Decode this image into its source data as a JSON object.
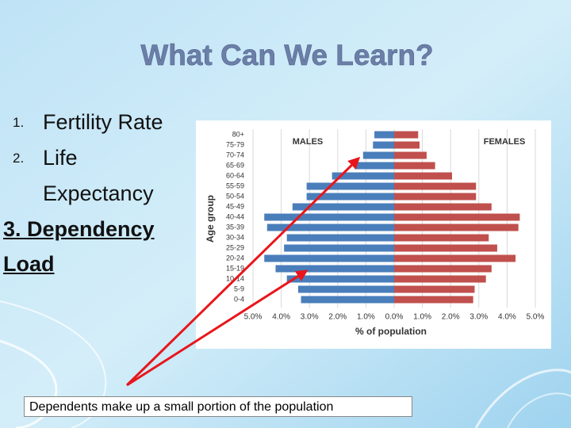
{
  "title": "What Can We Learn?",
  "list": [
    {
      "number": "1.",
      "text": "Fertility Rate"
    },
    {
      "number": "2.",
      "text": "Life Expectancy"
    },
    {
      "text": "3. Dependency Load"
    }
  ],
  "caption": "Dependents make up a small portion of the population",
  "chart_data": {
    "type": "bar",
    "orientation": "horizontal",
    "y_label": "Age group",
    "x_label": "% of population",
    "categories": [
      "80+",
      "75-79",
      "70-74",
      "65-69",
      "60-64",
      "55-59",
      "50-54",
      "45-49",
      "40-44",
      "35-39",
      "30-34",
      "25-29",
      "20-24",
      "15-19",
      "10-14",
      "5-9",
      "0-4"
    ],
    "series": [
      {
        "name": "MALES",
        "color": "#4a7ebb",
        "values": [
          -0.7,
          -0.75,
          -1.1,
          -1.4,
          -2.2,
          -3.1,
          -3.1,
          -3.6,
          -4.6,
          -4.5,
          -3.8,
          -3.9,
          -4.6,
          -4.2,
          -3.8,
          -3.4,
          -3.3
        ]
      },
      {
        "name": "FEMALES",
        "color": "#c0504d",
        "values": [
          0.85,
          0.9,
          1.15,
          1.45,
          2.05,
          2.9,
          2.9,
          3.45,
          4.45,
          4.4,
          3.35,
          3.65,
          4.3,
          3.45,
          3.25,
          2.85,
          2.8
        ]
      }
    ],
    "xlim": [
      -5,
      5
    ],
    "xticks": [
      {
        "value": -5,
        "label": "5.0%"
      },
      {
        "value": -4,
        "label": "4.0%"
      },
      {
        "value": -3,
        "label": "3.0%"
      },
      {
        "value": -2,
        "label": "2.0%"
      },
      {
        "value": -1,
        "label": "1.0%"
      },
      {
        "value": 0,
        "label": "0.0%"
      },
      {
        "value": 1,
        "label": "1.0%"
      },
      {
        "value": 2,
        "label": "2.0%"
      },
      {
        "value": 3,
        "label": "3.0%"
      },
      {
        "value": 4,
        "label": "4.0%"
      },
      {
        "value": 5,
        "label": "5.0%"
      }
    ],
    "grid": true
  }
}
